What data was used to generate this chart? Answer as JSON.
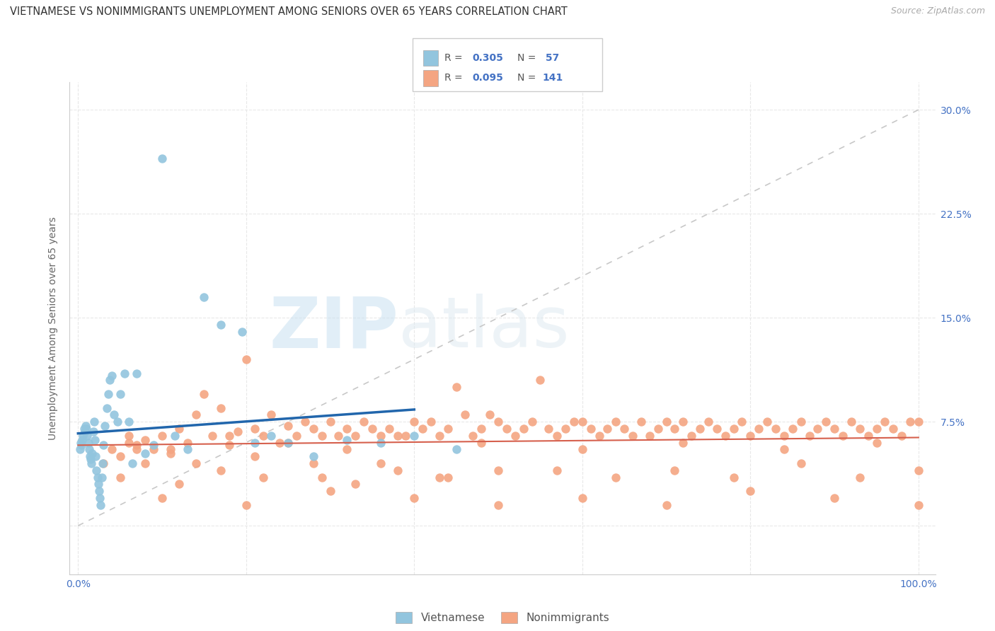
{
  "title": "VIETNAMESE VS NONIMMIGRANTS UNEMPLOYMENT AMONG SENIORS OVER 65 YEARS CORRELATION CHART",
  "source": "Source: ZipAtlas.com",
  "ylabel": "Unemployment Among Seniors over 65 years",
  "viet_color": "#92c5de",
  "viet_line_color": "#2166ac",
  "nonim_color": "#f4a582",
  "nonim_line_color": "#d6604d",
  "diagonal_color": "#c8c8c8",
  "watermark": "ZIPatlas",
  "viet_x": [
    0.2,
    0.3,
    0.4,
    0.5,
    0.6,
    0.7,
    0.8,
    0.9,
    1.0,
    1.1,
    1.2,
    1.3,
    1.4,
    1.5,
    1.6,
    1.7,
    1.8,
    1.9,
    2.0,
    2.1,
    2.2,
    2.3,
    2.4,
    2.5,
    2.6,
    2.7,
    2.8,
    2.9,
    3.0,
    3.2,
    3.4,
    3.6,
    3.8,
    4.0,
    4.3,
    4.7,
    5.0,
    5.5,
    6.0,
    6.5,
    7.0,
    8.0,
    9.0,
    10.0,
    11.5,
    13.0,
    15.0,
    17.0,
    19.5,
    21.0,
    23.0,
    25.0,
    28.0,
    32.0,
    36.0,
    40.0,
    45.0
  ],
  "viet_y": [
    5.5,
    6.0,
    5.8,
    6.2,
    6.5,
    7.0,
    6.8,
    7.2,
    7.0,
    6.5,
    6.0,
    5.5,
    5.0,
    4.8,
    4.5,
    5.2,
    6.8,
    7.5,
    6.2,
    5.0,
    4.0,
    3.5,
    3.0,
    2.5,
    2.0,
    1.5,
    3.5,
    4.5,
    5.8,
    7.2,
    8.5,
    9.5,
    10.5,
    10.8,
    8.0,
    7.5,
    9.5,
    11.0,
    7.5,
    4.5,
    11.0,
    5.2,
    5.8,
    26.5,
    6.5,
    5.5,
    16.5,
    14.5,
    14.0,
    6.0,
    6.5,
    6.0,
    5.0,
    6.2,
    6.0,
    6.5,
    5.5
  ],
  "nonim_x": [
    3.0,
    4.0,
    5.0,
    6.0,
    7.0,
    8.0,
    9.0,
    10.0,
    11.0,
    12.0,
    13.0,
    14.0,
    15.0,
    16.0,
    17.0,
    18.0,
    19.0,
    20.0,
    21.0,
    22.0,
    23.0,
    24.0,
    25.0,
    26.0,
    27.0,
    28.0,
    29.0,
    30.0,
    31.0,
    32.0,
    33.0,
    34.0,
    35.0,
    36.0,
    37.0,
    38.0,
    39.0,
    40.0,
    41.0,
    42.0,
    43.0,
    44.0,
    45.0,
    46.0,
    47.0,
    48.0,
    49.0,
    50.0,
    51.0,
    52.0,
    53.0,
    54.0,
    55.0,
    56.0,
    57.0,
    58.0,
    59.0,
    60.0,
    61.0,
    62.0,
    63.0,
    64.0,
    65.0,
    66.0,
    67.0,
    68.0,
    69.0,
    70.0,
    71.0,
    72.0,
    73.0,
    74.0,
    75.0,
    76.0,
    77.0,
    78.0,
    79.0,
    80.0,
    81.0,
    82.0,
    83.0,
    84.0,
    85.0,
    86.0,
    87.0,
    88.0,
    89.0,
    90.0,
    91.0,
    92.0,
    93.0,
    94.0,
    95.0,
    96.0,
    97.0,
    98.0,
    99.0,
    100.0,
    5.0,
    8.0,
    12.0,
    17.0,
    22.0,
    28.0,
    33.0,
    38.0,
    44.0,
    50.0,
    7.0,
    14.0,
    21.0,
    29.0,
    36.0,
    43.0,
    57.0,
    64.0,
    71.0,
    78.0,
    86.0,
    93.0,
    100.0,
    10.0,
    20.0,
    30.0,
    40.0,
    50.0,
    60.0,
    70.0,
    80.0,
    90.0,
    100.0,
    6.0,
    11.0,
    18.0,
    25.0,
    32.0,
    48.0,
    60.0,
    72.0,
    84.0,
    95.0
  ],
  "nonim_y": [
    4.5,
    5.5,
    5.0,
    6.0,
    5.8,
    6.2,
    5.5,
    6.5,
    5.2,
    7.0,
    6.0,
    8.0,
    9.5,
    6.5,
    8.5,
    5.8,
    6.8,
    12.0,
    7.0,
    6.5,
    8.0,
    6.0,
    7.2,
    6.5,
    7.5,
    7.0,
    6.5,
    7.5,
    6.5,
    7.0,
    6.5,
    7.5,
    7.0,
    6.5,
    7.0,
    6.5,
    6.5,
    7.5,
    7.0,
    7.5,
    6.5,
    7.0,
    10.0,
    8.0,
    6.5,
    7.0,
    8.0,
    7.5,
    7.0,
    6.5,
    7.0,
    7.5,
    10.5,
    7.0,
    6.5,
    7.0,
    7.5,
    7.5,
    7.0,
    6.5,
    7.0,
    7.5,
    7.0,
    6.5,
    7.5,
    6.5,
    7.0,
    7.5,
    7.0,
    7.5,
    6.5,
    7.0,
    7.5,
    7.0,
    6.5,
    7.0,
    7.5,
    6.5,
    7.0,
    7.5,
    7.0,
    6.5,
    7.0,
    7.5,
    6.5,
    7.0,
    7.5,
    7.0,
    6.5,
    7.5,
    7.0,
    6.5,
    7.0,
    7.5,
    7.0,
    6.5,
    7.5,
    7.5,
    3.5,
    4.5,
    3.0,
    4.0,
    3.5,
    4.5,
    3.0,
    4.0,
    3.5,
    4.0,
    5.5,
    4.5,
    5.0,
    3.5,
    4.5,
    3.5,
    4.0,
    3.5,
    4.0,
    3.5,
    4.5,
    3.5,
    4.0,
    2.0,
    1.5,
    2.5,
    2.0,
    1.5,
    2.0,
    1.5,
    2.5,
    2.0,
    1.5,
    6.5,
    5.5,
    6.5,
    6.0,
    5.5,
    6.0,
    5.5,
    6.0,
    5.5,
    6.0
  ]
}
